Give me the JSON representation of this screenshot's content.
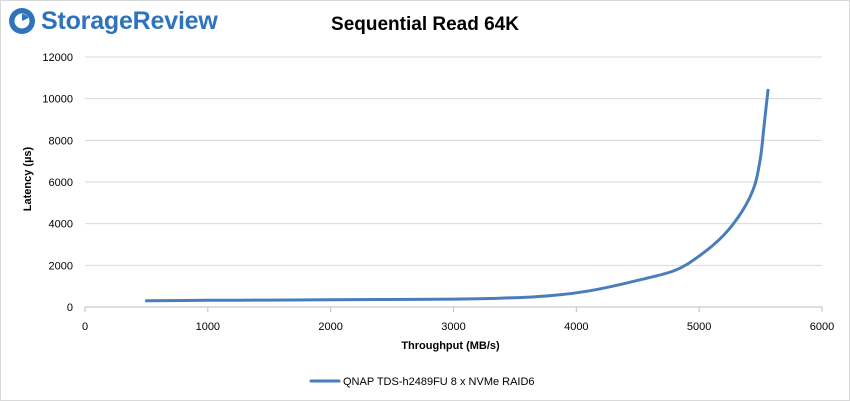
{
  "brand": {
    "name": "StorageReview",
    "color": "#2f73bd"
  },
  "chart_data": {
    "type": "line",
    "title": "Sequential Read 64K",
    "xlabel": "Throughput (MB/s)",
    "ylabel": "Latency (µs)",
    "xlim": [
      0,
      6000
    ],
    "ylim": [
      0,
      12000
    ],
    "x_ticks": [
      0,
      1000,
      2000,
      3000,
      4000,
      5000,
      6000
    ],
    "y_ticks": [
      0,
      2000,
      4000,
      6000,
      8000,
      10000,
      12000
    ],
    "x_tick_labels": [
      "0",
      "1000",
      "2000",
      "3000",
      "4000",
      "5000",
      "6000"
    ],
    "y_tick_labels": [
      "0",
      "2000",
      "4000",
      "6000",
      "8000",
      "10000",
      "12000"
    ],
    "grid": "horizontal",
    "legend_position": "bottom",
    "series": [
      {
        "name": "QNAP TDS-h2489FU 8 x NVMe RAID6",
        "color": "#4a7ebb",
        "x": [
          500,
          1000,
          1500,
          2000,
          2500,
          3000,
          3300,
          3600,
          3800,
          4000,
          4200,
          4500,
          4800,
          5000,
          5200,
          5350,
          5450,
          5500,
          5530,
          5560
        ],
        "y": [
          300,
          320,
          330,
          345,
          360,
          380,
          410,
          470,
          550,
          680,
          880,
          1280,
          1750,
          2450,
          3450,
          4600,
          5800,
          7200,
          8800,
          10400
        ]
      }
    ]
  }
}
